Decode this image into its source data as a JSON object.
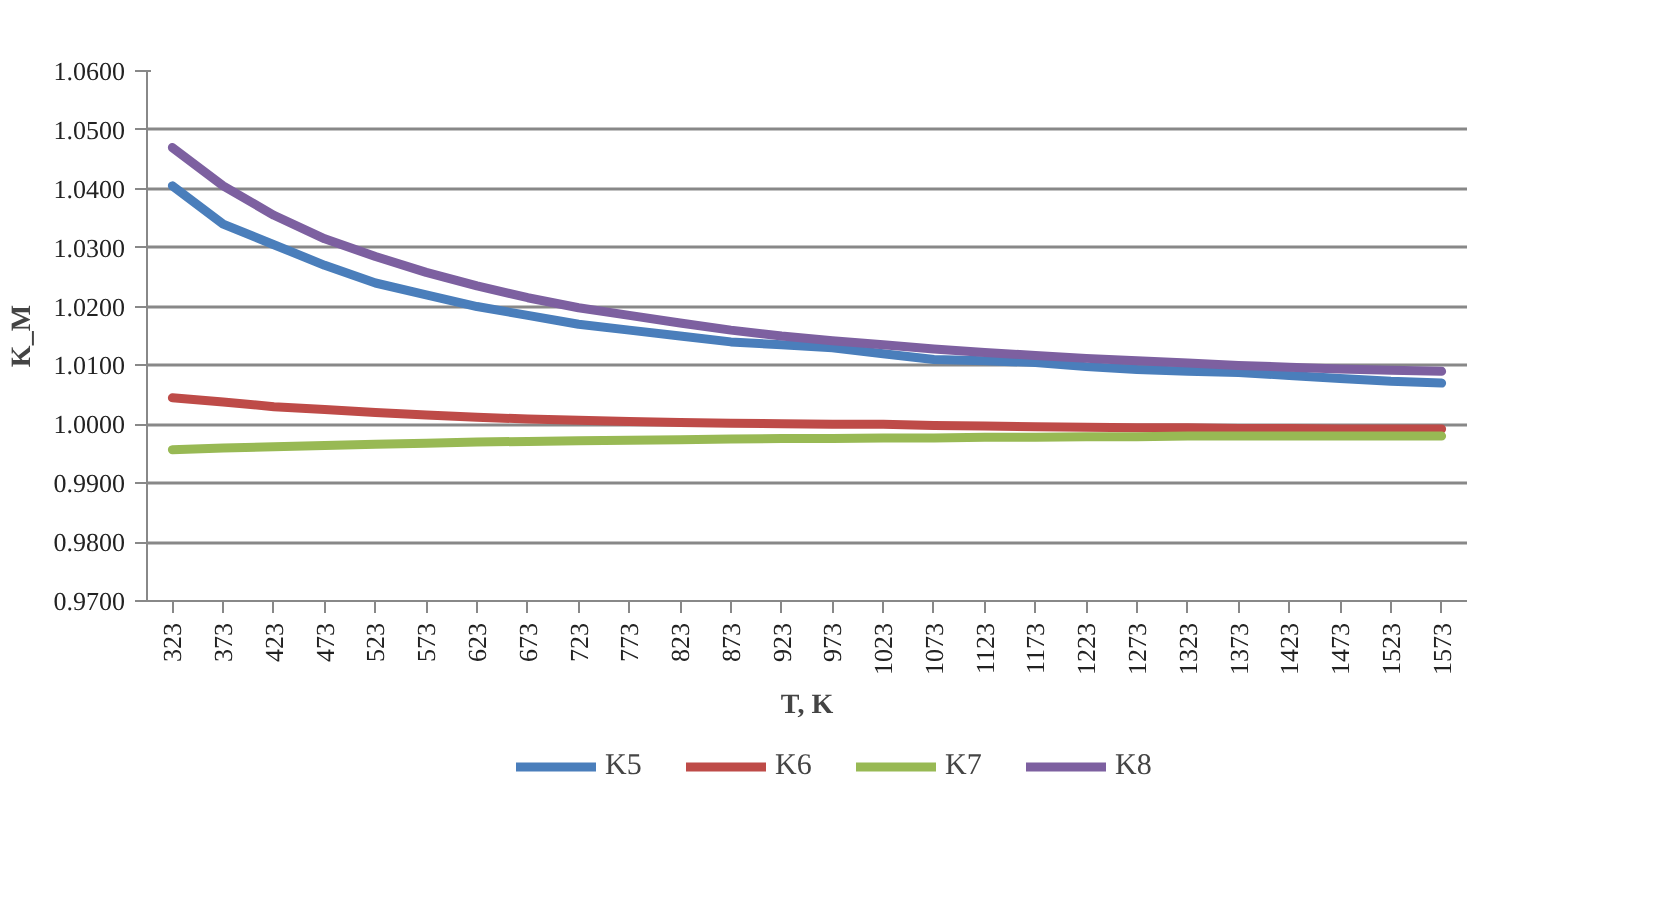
{
  "chart_data": {
    "type": "line",
    "xlabel": "T, K",
    "ylabel": "K_M",
    "categories": [
      "323",
      "373",
      "423",
      "473",
      "523",
      "573",
      "623",
      "673",
      "723",
      "773",
      "823",
      "873",
      "923",
      "973",
      "1023",
      "1073",
      "1123",
      "1173",
      "1223",
      "1273",
      "1323",
      "1373",
      "1423",
      "1473",
      "1523",
      "1573"
    ],
    "series": [
      {
        "name": "K5",
        "color": "#4a7ebb",
        "values": [
          1.0405,
          1.034,
          1.0305,
          1.027,
          1.024,
          1.022,
          1.02,
          1.0185,
          1.017,
          1.016,
          1.015,
          1.014,
          1.0135,
          1.013,
          1.012,
          1.011,
          1.0108,
          1.0105,
          1.0098,
          1.0093,
          1.009,
          1.0088,
          1.0083,
          1.0078,
          1.0073,
          1.007
        ]
      },
      {
        "name": "K6",
        "color": "#be4b48",
        "values": [
          1.0045,
          1.0038,
          1.003,
          1.0025,
          1.002,
          1.0016,
          1.0012,
          1.0009,
          1.0007,
          1.0005,
          1.0003,
          1.0002,
          1.0001,
          1.0,
          1.0,
          0.9998,
          0.9997,
          0.9996,
          0.9995,
          0.9994,
          0.9994,
          0.9993,
          0.9993,
          0.9992,
          0.9992,
          0.9992
        ]
      },
      {
        "name": "K7",
        "color": "#98b954",
        "values": [
          0.9957,
          0.996,
          0.9962,
          0.9964,
          0.9966,
          0.9968,
          0.997,
          0.9971,
          0.9972,
          0.9973,
          0.9974,
          0.9975,
          0.9976,
          0.9976,
          0.9977,
          0.9977,
          0.9978,
          0.9978,
          0.9979,
          0.9979,
          0.998,
          0.998,
          0.998,
          0.998,
          0.998,
          0.998
        ]
      },
      {
        "name": "K8",
        "color": "#7d60a0",
        "values": [
          1.047,
          1.0405,
          1.0355,
          1.0315,
          1.0285,
          1.0258,
          1.0235,
          1.0215,
          1.0198,
          1.0185,
          1.0172,
          1.016,
          1.015,
          1.0142,
          1.0135,
          1.0128,
          1.0122,
          1.0117,
          1.0112,
          1.0108,
          1.0104,
          1.01,
          1.0097,
          1.0094,
          1.0092,
          1.009
        ]
      }
    ],
    "ylim": [
      0.97,
      1.06
    ],
    "yticks": [
      {
        "value": 0.97,
        "label": "0.9700"
      },
      {
        "value": 0.98,
        "label": "0.9800"
      },
      {
        "value": 0.99,
        "label": "0.9900"
      },
      {
        "value": 1.0,
        "label": "1.0000"
      },
      {
        "value": 1.01,
        "label": "1.0100"
      },
      {
        "value": 1.02,
        "label": "1.0200"
      },
      {
        "value": 1.03,
        "label": "1.0300"
      },
      {
        "value": 1.04,
        "label": "1.0400"
      },
      {
        "value": 1.05,
        "label": "1.0500"
      },
      {
        "value": 1.06,
        "label": "1.0600"
      }
    ],
    "grid": "y",
    "legend": "bottom",
    "marker": "none",
    "line_style": "solid"
  }
}
